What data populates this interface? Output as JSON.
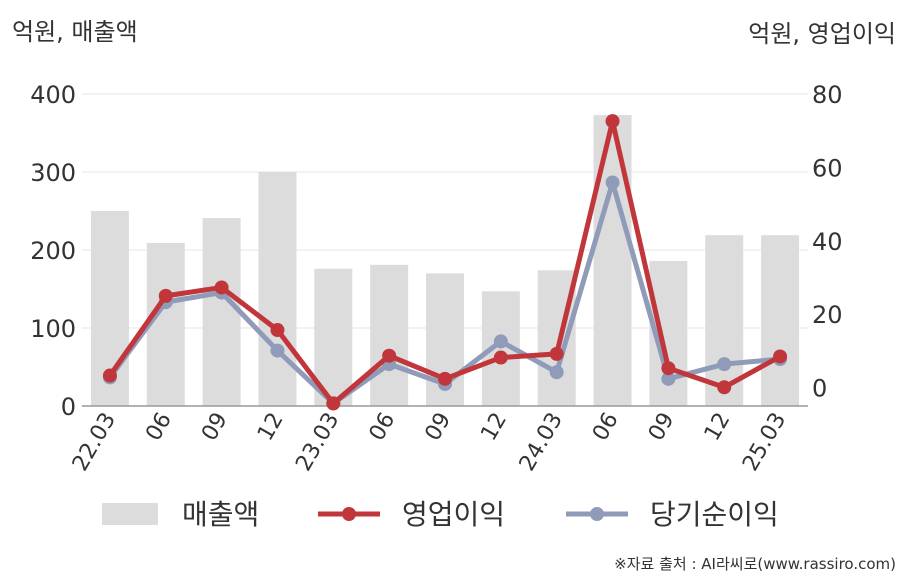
{
  "chart_data": {
    "type": "bar+line",
    "left_axis_label": "억원, 매출액",
    "right_axis_label": "억원, 영업이익",
    "left_ylim": [
      0,
      400
    ],
    "left_ticks": [
      "0",
      "100",
      "200",
      "300",
      "400"
    ],
    "right_ylim": [
      -5,
      80
    ],
    "right_ticks": [
      "0",
      "20",
      "40",
      "60",
      "80"
    ],
    "categories": [
      "22.03",
      "06",
      "09",
      "12",
      "23.03",
      "06",
      "09",
      "12",
      "24.03",
      "06",
      "09",
      "12",
      "25.03"
    ],
    "series": [
      {
        "name": "매출액",
        "type": "bar",
        "axis": "left",
        "values": [
          250,
          209,
          241,
          300,
          176,
          181,
          170,
          147,
          174,
          373,
          186,
          219,
          219
        ]
      },
      {
        "name": "영업이익",
        "type": "line",
        "axis": "right",
        "values": [
          3.3,
          25,
          27.3,
          15.7,
          -4.3,
          8.7,
          2.4,
          8.2,
          9.2,
          72.6,
          5.3,
          0.1,
          8.5
        ]
      },
      {
        "name": "당기순이익",
        "type": "line",
        "axis": "right",
        "values": [
          2.8,
          23.3,
          25.9,
          10.1,
          -4.3,
          6.4,
          1,
          12.6,
          4.2,
          55.9,
          2.4,
          6.4,
          7.8
        ]
      }
    ],
    "grid": true,
    "legend": "bottom"
  },
  "colors": {
    "bar": "#dcdcdc",
    "operating_profit": "#c0363a",
    "net_income": "#8f9bb8",
    "grid": "#e6e6e6",
    "axis": "#999999"
  },
  "source": "※자료 출처 : AI라씨로(www.rassiro.com)"
}
